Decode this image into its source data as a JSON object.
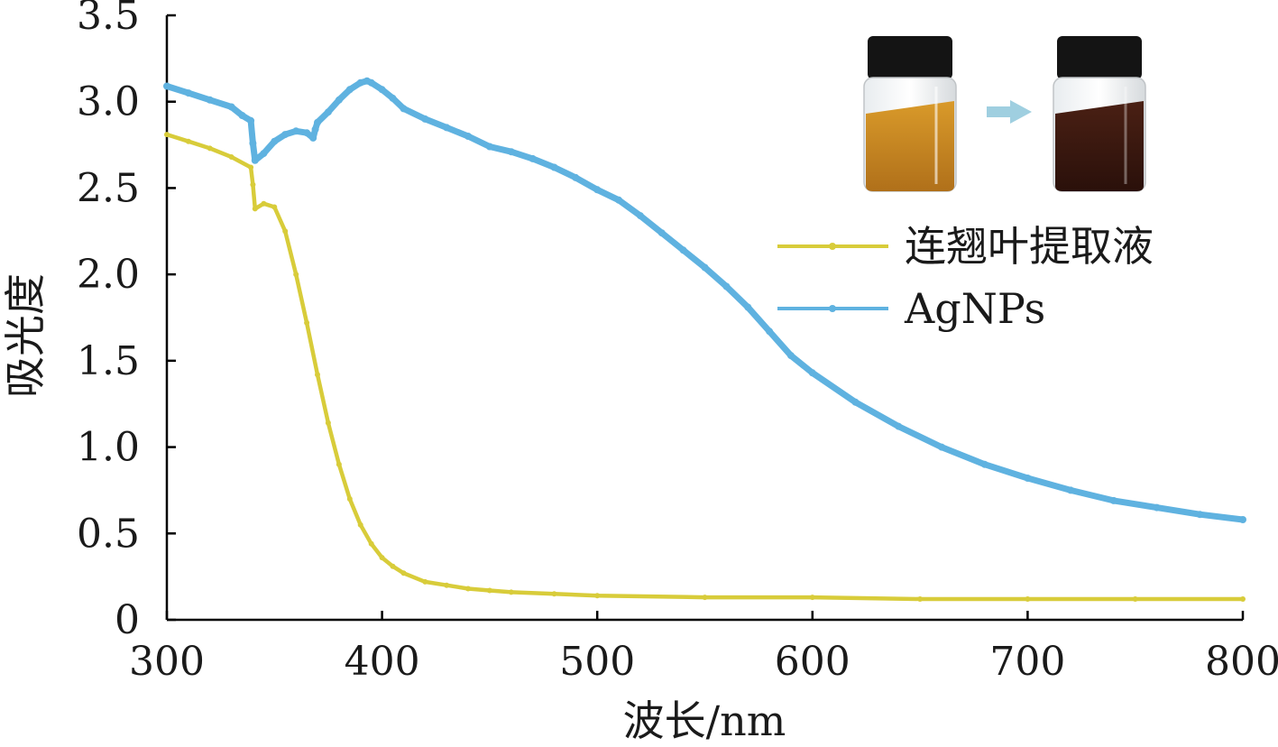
{
  "chart_data": {
    "type": "line",
    "title": "",
    "xlabel": "波长/nm",
    "ylabel": "吸光度",
    "xlim": [
      300,
      800
    ],
    "ylim": [
      0,
      3.5
    ],
    "xticks": [
      300,
      400,
      500,
      600,
      700,
      800
    ],
    "xtick_labels": [
      "300",
      "400",
      "500",
      "600",
      "700",
      "800"
    ],
    "yticks": [
      0,
      0.5,
      1.0,
      1.5,
      2.0,
      2.5,
      3.0,
      3.5
    ],
    "ytick_labels": [
      "0",
      "0.5",
      "1.0",
      "1.5",
      "2.0",
      "2.5",
      "3.0",
      "3.5"
    ],
    "grid": false,
    "legend_position": "right",
    "series": [
      {
        "name": "连翘叶提取液",
        "color": "#d8cc3a",
        "x": [
          300,
          310,
          320,
          330,
          339,
          340,
          341,
          345,
          350,
          355,
          360,
          365,
          370,
          375,
          380,
          385,
          390,
          395,
          400,
          405,
          410,
          420,
          430,
          440,
          450,
          460,
          480,
          500,
          550,
          600,
          650,
          700,
          750,
          800
        ],
        "y": [
          2.81,
          2.77,
          2.73,
          2.68,
          2.62,
          2.52,
          2.38,
          2.41,
          2.39,
          2.25,
          2.0,
          1.72,
          1.42,
          1.14,
          0.9,
          0.7,
          0.55,
          0.44,
          0.36,
          0.31,
          0.27,
          0.22,
          0.2,
          0.18,
          0.17,
          0.16,
          0.15,
          0.14,
          0.13,
          0.13,
          0.12,
          0.12,
          0.12,
          0.12
        ]
      },
      {
        "name": "AgNPs",
        "color": "#5fb2e0",
        "x": [
          300,
          310,
          320,
          330,
          335,
          339,
          340,
          341,
          345,
          350,
          355,
          360,
          365,
          368,
          369,
          370,
          375,
          380,
          385,
          390,
          393,
          395,
          400,
          405,
          410,
          420,
          430,
          440,
          450,
          460,
          470,
          480,
          490,
          500,
          510,
          520,
          530,
          540,
          550,
          560,
          570,
          580,
          590,
          600,
          620,
          640,
          660,
          680,
          700,
          720,
          740,
          760,
          780,
          800
        ],
        "y": [
          3.09,
          3.05,
          3.01,
          2.97,
          2.92,
          2.89,
          2.76,
          2.66,
          2.7,
          2.77,
          2.81,
          2.83,
          2.82,
          2.79,
          2.84,
          2.88,
          2.94,
          3.01,
          3.07,
          3.11,
          3.12,
          3.11,
          3.07,
          3.02,
          2.96,
          2.9,
          2.85,
          2.8,
          2.74,
          2.71,
          2.67,
          2.62,
          2.56,
          2.49,
          2.43,
          2.34,
          2.24,
          2.14,
          2.04,
          1.93,
          1.81,
          1.67,
          1.53,
          1.43,
          1.26,
          1.12,
          1.0,
          0.9,
          0.82,
          0.75,
          0.69,
          0.65,
          0.61,
          0.58
        ]
      }
    ],
    "inset": {
      "description_icon": "vial-color-change-photo",
      "left_vial_color": "#c9891e",
      "right_vial_color": "#3c1a10",
      "arrow_color": "#9fcfe0"
    }
  }
}
